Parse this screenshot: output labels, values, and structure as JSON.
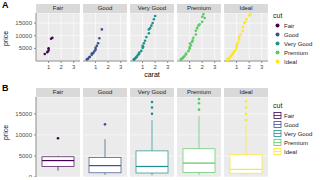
{
  "chart_data": [
    {
      "type": "scatter",
      "title": "A",
      "x_label": "carat",
      "y_label": "price",
      "legend_title": "cut",
      "legend": "right",
      "grid": true,
      "xlim": [
        0,
        3.5
      ],
      "xticks": [
        1,
        2,
        3
      ],
      "ylim": [
        0,
        19000
      ],
      "yticks": [
        5000,
        10000,
        15000
      ],
      "series": [
        {
          "name": "Fair",
          "color": "#440154",
          "x": [
            0.7,
            0.9,
            1.0,
            1.0,
            1.2,
            1.3
          ],
          "values": [
            2800,
            3500,
            4200,
            5000,
            8800,
            9200
          ]
        },
        {
          "name": "Good",
          "color": "#3b528b",
          "x": [
            0.3,
            0.35,
            0.4,
            0.5,
            0.55,
            0.7,
            0.7,
            0.8,
            0.9,
            1.0,
            1.0,
            1.1,
            1.2,
            1.3,
            1.5
          ],
          "values": [
            600,
            800,
            900,
            1500,
            1700,
            2500,
            2900,
            3100,
            3800,
            4500,
            5200,
            6000,
            7000,
            9000,
            12500
          ]
        },
        {
          "name": "Very Good",
          "color": "#21908c",
          "x": [
            0.3,
            0.31,
            0.35,
            0.4,
            0.42,
            0.5,
            0.53,
            0.6,
            0.7,
            0.71,
            0.75,
            0.9,
            1.0,
            1.01,
            1.05,
            1.1,
            1.2,
            1.3,
            1.5,
            1.5,
            1.7,
            1.8,
            2.0,
            1.9,
            1.6
          ],
          "values": [
            500,
            650,
            800,
            950,
            1100,
            1500,
            1700,
            2200,
            2700,
            3000,
            3300,
            4000,
            5200,
            6000,
            5600,
            7000,
            8000,
            9500,
            11000,
            12500,
            14000,
            15000,
            17800,
            16500,
            13000
          ]
        },
        {
          "name": "Premium",
          "color": "#5dc863",
          "x": [
            0.3,
            0.32,
            0.4,
            0.45,
            0.5,
            0.58,
            0.7,
            0.72,
            0.9,
            1.0,
            1.01,
            1.1,
            1.2,
            1.25,
            1.5,
            1.5,
            1.7,
            2.0,
            2.01,
            2.1,
            2.2,
            1.8,
            1.6,
            1.3,
            1.03
          ],
          "values": [
            550,
            700,
            1000,
            1200,
            1500,
            1900,
            2600,
            2900,
            3900,
            4800,
            5400,
            6200,
            7500,
            8200,
            10500,
            12000,
            14000,
            15500,
            17500,
            18500,
            17000,
            14500,
            13000,
            9200,
            6900
          ]
        },
        {
          "name": "Ideal",
          "color": "#fde725",
          "x": [
            0.23,
            0.3,
            0.31,
            0.33,
            0.35,
            0.4,
            0.41,
            0.5,
            0.52,
            0.55,
            0.6,
            0.7,
            0.71,
            0.75,
            0.8,
            0.9,
            1.0,
            1.01,
            1.02,
            1.1,
            1.2,
            1.2,
            1.3,
            1.5,
            1.5,
            1.6,
            1.7,
            1.8,
            2.0,
            2.1
          ],
          "values": [
            400,
            550,
            650,
            750,
            900,
            1100,
            1200,
            1600,
            1800,
            2000,
            2300,
            2800,
            3000,
            3300,
            3600,
            4200,
            5200,
            5800,
            6500,
            7200,
            8500,
            9500,
            10500,
            12000,
            13500,
            15000,
            15500,
            16500,
            18000,
            18500
          ]
        }
      ]
    },
    {
      "type": "box",
      "title": "B",
      "y_label": "price",
      "legend_title": "cut",
      "legend": "right",
      "grid": true,
      "tick_labels": "y",
      "ylim": [
        0,
        19000
      ],
      "yticks": [
        0,
        5000,
        10000,
        15000
      ],
      "series": [
        {
          "name": "Fair",
          "color": "#440154",
          "min": 1500,
          "q1": 2500,
          "median": 3900,
          "q3": 4800,
          "max": 5000,
          "outliers": [
            9200
          ]
        },
        {
          "name": "Good",
          "color": "#3b528b",
          "min": 500,
          "q1": 1000,
          "median": 2700,
          "q3": 4600,
          "max": 9000,
          "outliers": [
            12500
          ]
        },
        {
          "name": "Very Good",
          "color": "#21908c",
          "min": 400,
          "q1": 950,
          "median": 2500,
          "q3": 6200,
          "max": 13500,
          "outliers": [
            15000,
            16500,
            17800
          ]
        },
        {
          "name": "Premium",
          "color": "#5dc863",
          "min": 500,
          "q1": 1100,
          "median": 3300,
          "q3": 6700,
          "max": 14500,
          "outliers": [
            16000,
            17500,
            18500
          ]
        },
        {
          "name": "Ideal",
          "color": "#fde725",
          "min": 400,
          "q1": 900,
          "median": 1800,
          "q3": 5400,
          "max": 12500,
          "outliers": [
            13500,
            15000,
            16500,
            18000
          ]
        }
      ]
    }
  ]
}
